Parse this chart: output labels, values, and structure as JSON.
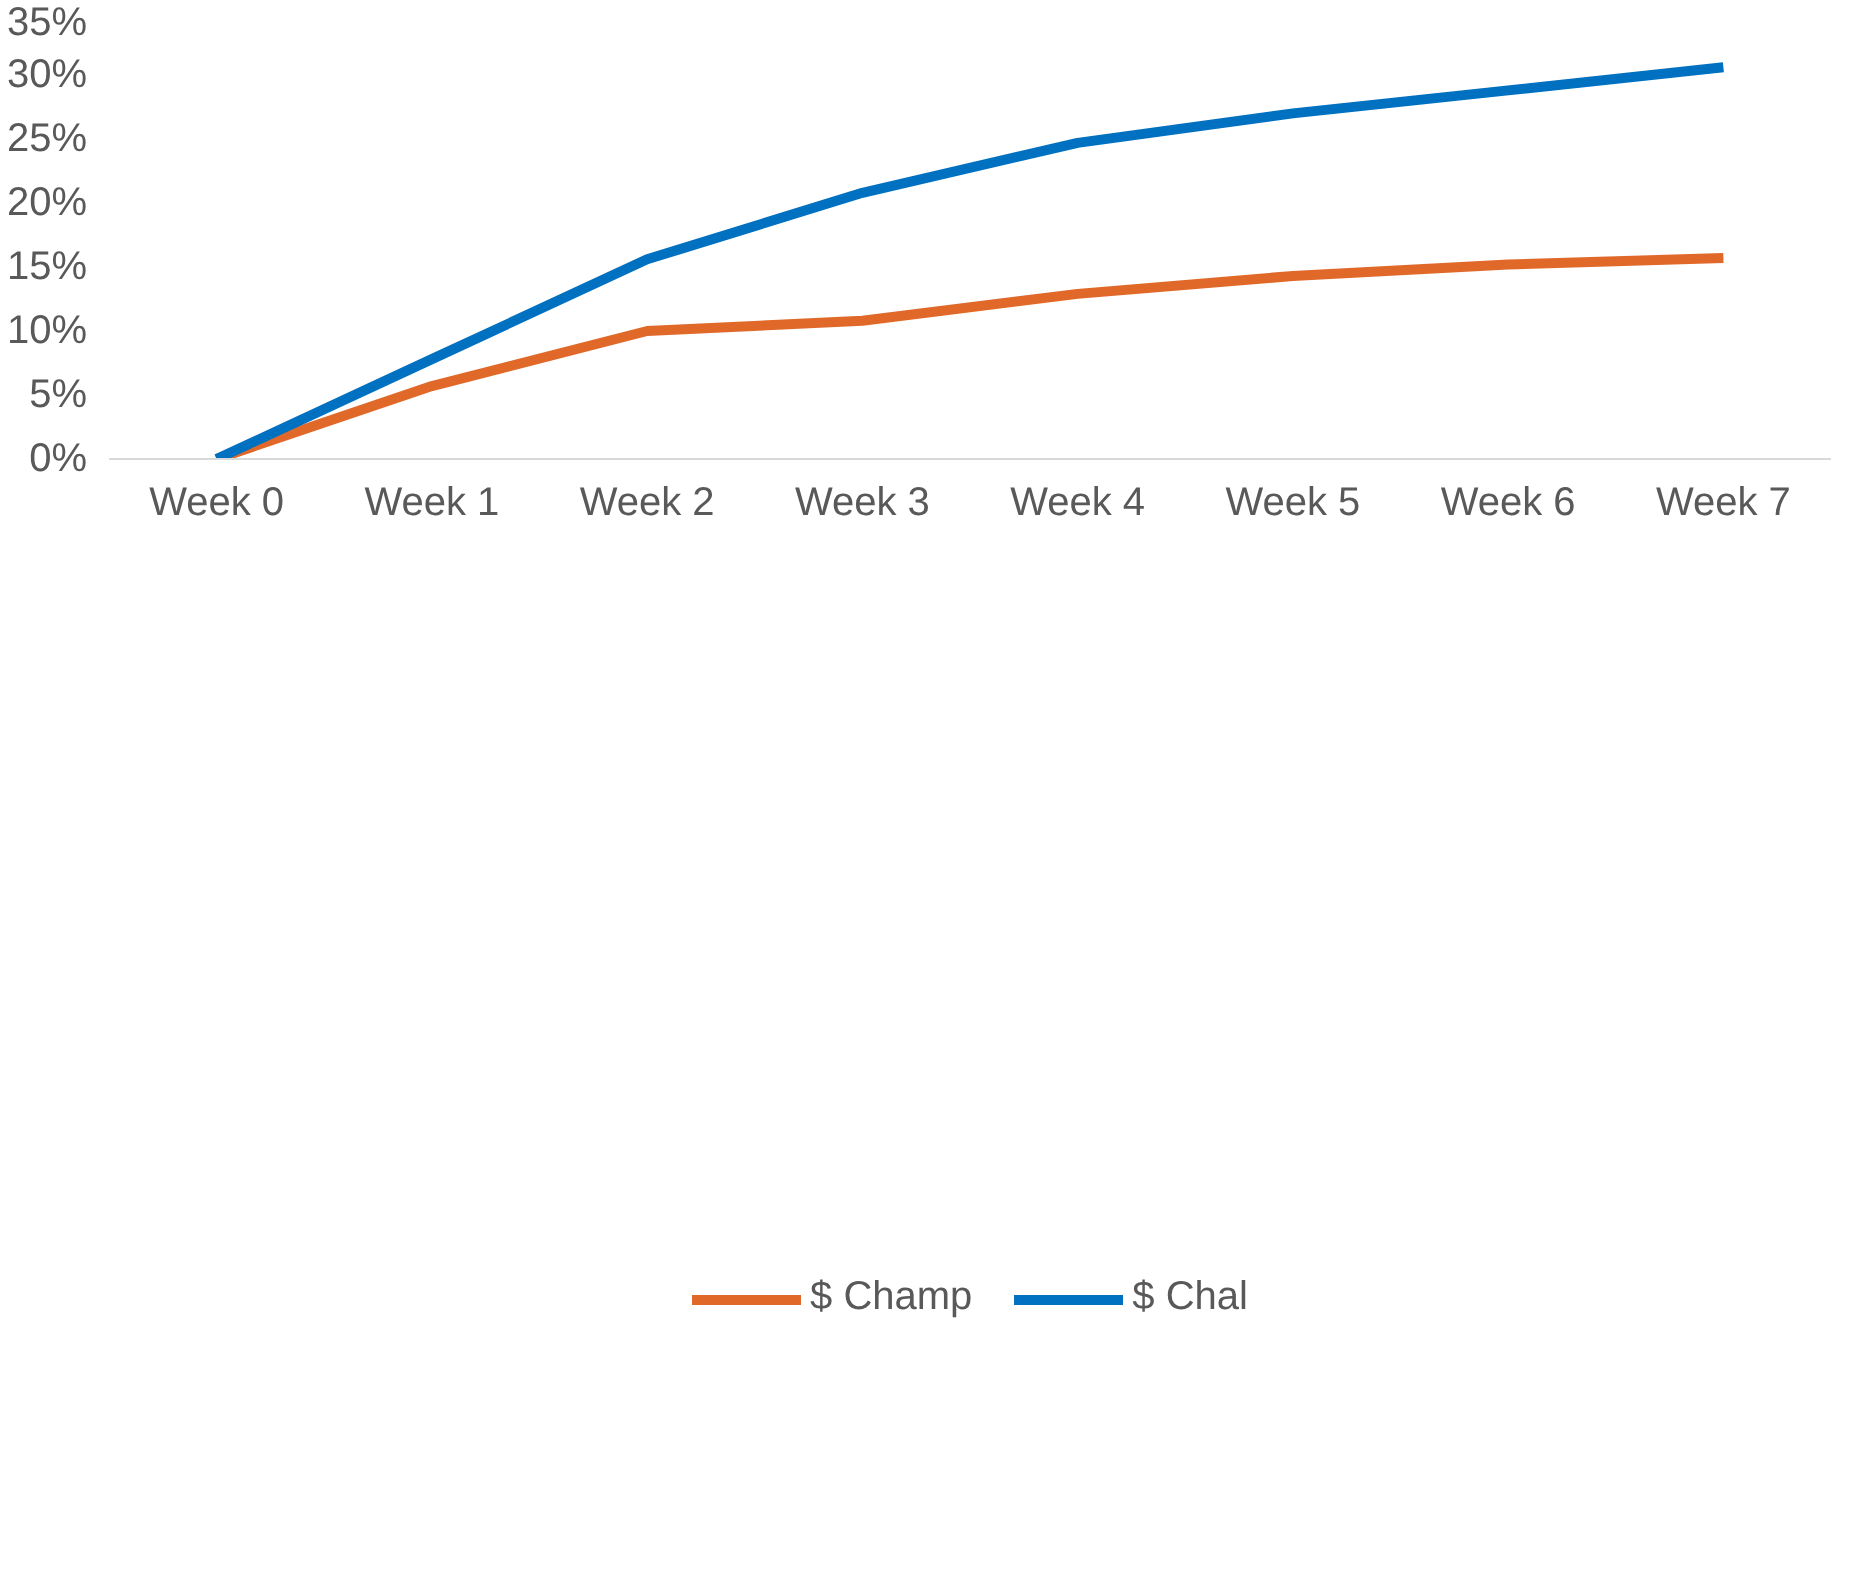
{
  "chart_data": {
    "type": "line",
    "categories": [
      "Week 0",
      "Week 1",
      "Week 2",
      "Week 3",
      "Week 4",
      "Week 5",
      "Week 6",
      "Week 7"
    ],
    "series": [
      {
        "name": "$ Champ",
        "color": "#e0692a",
        "values": [
          0,
          5.7,
          10.0,
          10.8,
          12.9,
          14.3,
          15.2,
          15.7
        ]
      },
      {
        "name": "$ Chal",
        "color": "#0070c0",
        "values": [
          0,
          7.8,
          15.6,
          20.8,
          24.7,
          27.0,
          28.8,
          30.6
        ]
      }
    ],
    "ylim": [
      0,
      35
    ],
    "yticks": [
      {
        "value": 0,
        "label": "0%"
      },
      {
        "value": 5,
        "label": "5%"
      },
      {
        "value": 10,
        "label": "10%"
      },
      {
        "value": 15,
        "label": "15%"
      },
      {
        "value": 20,
        "label": "20%"
      },
      {
        "value": 25,
        "label": "25%"
      },
      {
        "value": 30,
        "label": "30%"
      },
      {
        "value": 35,
        "label": "35%"
      }
    ],
    "grid": false,
    "legend": "bottom",
    "marker": "none",
    "line_style": "solid"
  }
}
